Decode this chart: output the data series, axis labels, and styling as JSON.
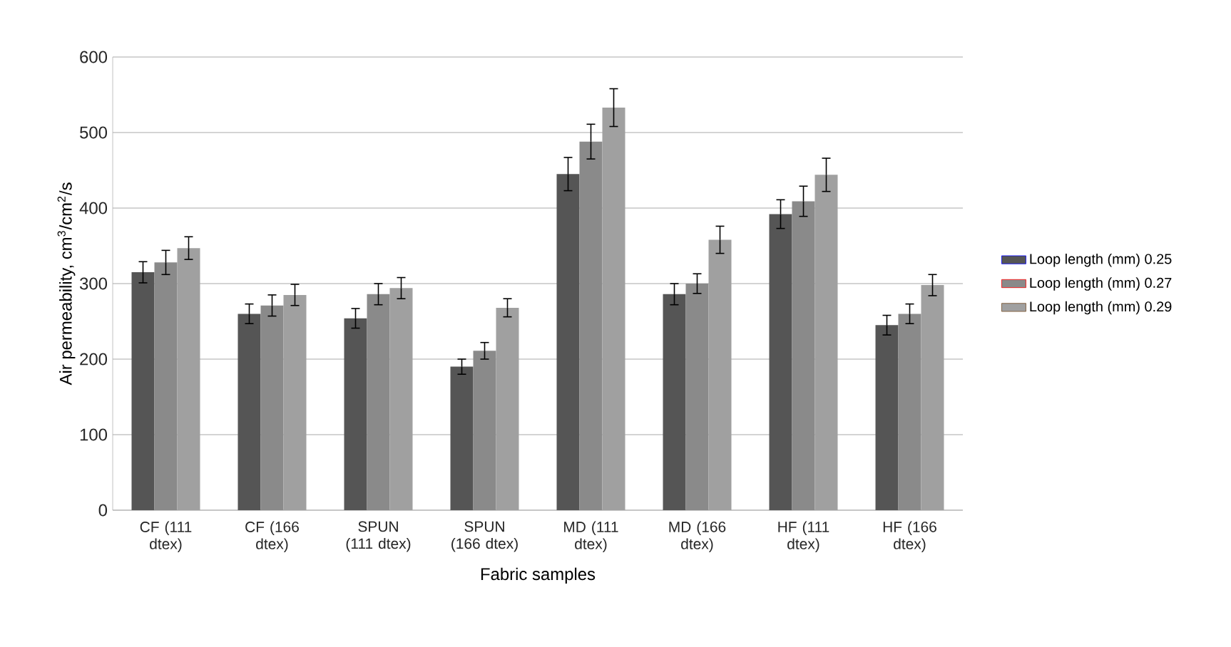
{
  "chart_data": {
    "type": "bar",
    "xlabel": "Fabric samples",
    "ylabel": "Air permeability, cm$^{3}$/cm$^{2}$/s",
    "categories": [
      "CF (111 dtex)",
      "CF (166 dtex)",
      "SPUN (111 dtex)",
      "SPUN (166 dtex)",
      "MD (111 dtex)",
      "MD (166 dtex)",
      "HF (111 dtex)",
      "HF (166 dtex)"
    ],
    "series": [
      {
        "name": "Loop length (mm) 0.25",
        "color": "#555555",
        "values": [
          315,
          260,
          254,
          190,
          445,
          286,
          392,
          245
        ],
        "errors": [
          14,
          13,
          13,
          10,
          22,
          14,
          19,
          13
        ]
      },
      {
        "name": "Loop length (mm) 0.27",
        "color": "#8a8a8a",
        "values": [
          328,
          271,
          286,
          211,
          488,
          300,
          409,
          260
        ],
        "errors": [
          16,
          14,
          14,
          11,
          23,
          13,
          20,
          13
        ]
      },
      {
        "name": "Loop length (mm) 0.29",
        "color": "#a0a0a0",
        "values": [
          347,
          285,
          294,
          268,
          533,
          358,
          444,
          298
        ],
        "errors": [
          15,
          14,
          14,
          12,
          25,
          18,
          22,
          14
        ]
      }
    ],
    "ylim": [
      0,
      600
    ],
    "yticks": [
      0,
      100,
      200,
      300,
      400,
      500,
      600
    ],
    "grid": "y",
    "legend": "right"
  }
}
